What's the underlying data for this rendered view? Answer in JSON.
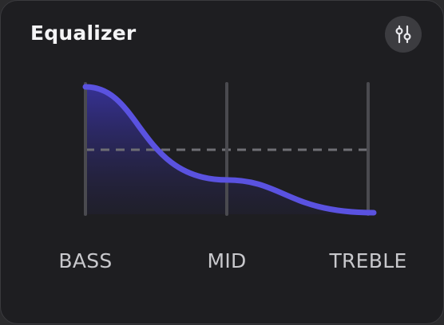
{
  "header": {
    "title": "Equalizer",
    "settings_icon": "sliders-icon"
  },
  "equalizer": {
    "accent_color": "#5a52e0",
    "bands": [
      {
        "label": "BASS",
        "level": 1.0
      },
      {
        "label": "MID",
        "level": 0.26
      },
      {
        "label": "TREBLE",
        "level": 0.0
      }
    ],
    "reference_line": 0.5
  }
}
